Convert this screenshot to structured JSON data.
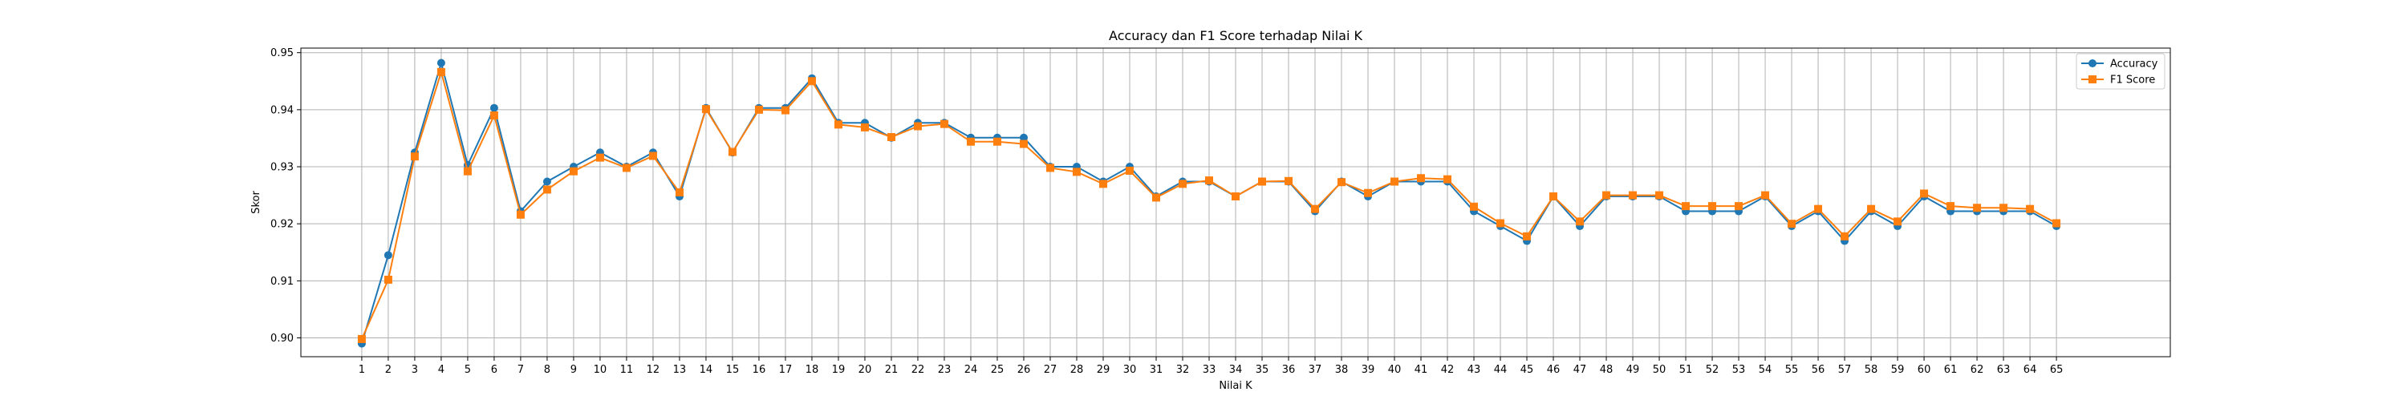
{
  "chart_data": {
    "type": "line",
    "title": "Accuracy dan F1 Score terhadap Nilai K",
    "xlabel": "Nilai K",
    "ylabel": "Skor",
    "x": [
      1,
      2,
      3,
      4,
      5,
      6,
      7,
      8,
      9,
      10,
      11,
      12,
      13,
      14,
      15,
      16,
      17,
      18,
      19,
      20,
      21,
      22,
      23,
      24,
      25,
      26,
      27,
      28,
      29,
      30,
      31,
      32,
      33,
      34,
      35,
      36,
      37,
      38,
      39,
      40,
      41,
      42,
      43,
      44,
      45,
      46,
      47,
      48,
      49,
      50,
      51,
      52,
      53,
      54,
      55,
      56,
      57,
      58,
      59,
      60,
      61,
      62,
      63,
      64,
      65
    ],
    "xlim": [
      -1.3,
      69.3
    ],
    "ylim": [
      0.8967,
      0.9508
    ],
    "yticks": [
      0.9,
      0.91,
      0.92,
      0.93,
      0.94,
      0.95
    ],
    "ytick_labels": [
      "0.90",
      "0.91",
      "0.92",
      "0.93",
      "0.94",
      "0.95"
    ],
    "grid": true,
    "legend_position": "top-right",
    "series": [
      {
        "name": "Accuracy",
        "color": "#1f77b4",
        "marker": "circle",
        "values": [
          0.899,
          0.9145,
          0.9325,
          0.9482,
          0.9303,
          0.9403,
          0.9222,
          0.9274,
          0.93,
          0.9325,
          0.93,
          0.9325,
          0.9248,
          0.9403,
          0.9325,
          0.9403,
          0.9403,
          0.9455,
          0.9377,
          0.9377,
          0.9351,
          0.9377,
          0.9377,
          0.9351,
          0.9351,
          0.9351,
          0.93,
          0.93,
          0.9274,
          0.93,
          0.9248,
          0.9274,
          0.9274,
          0.9248,
          0.9274,
          0.9274,
          0.9222,
          0.9274,
          0.9248,
          0.9274,
          0.9274,
          0.9274,
          0.9222,
          0.9196,
          0.917,
          0.9248,
          0.9196,
          0.9248,
          0.9248,
          0.9248,
          0.9222,
          0.9222,
          0.9222,
          0.9248,
          0.9196,
          0.9222,
          0.917,
          0.9222,
          0.9196,
          0.9248,
          0.9222,
          0.9222,
          0.9222,
          0.9222,
          0.9196
        ]
      },
      {
        "name": "F1 Score",
        "color": "#ff7f0e",
        "marker": "square",
        "values": [
          0.8998,
          0.9102,
          0.9318,
          0.9466,
          0.9292,
          0.939,
          0.9216,
          0.926,
          0.9292,
          0.9316,
          0.9298,
          0.9319,
          0.9255,
          0.9401,
          0.9326,
          0.94,
          0.9399,
          0.945,
          0.9374,
          0.9369,
          0.9352,
          0.9371,
          0.9375,
          0.9344,
          0.9344,
          0.934,
          0.9298,
          0.9291,
          0.927,
          0.9293,
          0.9246,
          0.927,
          0.9276,
          0.9248,
          0.9274,
          0.9275,
          0.9226,
          0.9273,
          0.9254,
          0.9274,
          0.928,
          0.9278,
          0.923,
          0.9201,
          0.9178,
          0.9248,
          0.9204,
          0.925,
          0.925,
          0.925,
          0.9231,
          0.9231,
          0.9231,
          0.925,
          0.92,
          0.9226,
          0.9178,
          0.9226,
          0.9204,
          0.9253,
          0.9231,
          0.9228,
          0.9228,
          0.9226,
          0.9201
        ]
      }
    ]
  }
}
